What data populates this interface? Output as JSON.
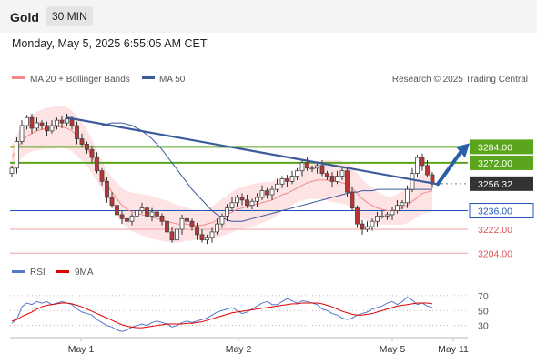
{
  "header": {
    "title": "Gold",
    "timeframe": "30 MIN"
  },
  "datetime": "Monday, May 5, 2025 6:55:05 AM CET",
  "legend": {
    "ma20": "MA 20 + Bollinger Bands",
    "ma50": "MA 50",
    "credit": "Research © 2025 Trading Central"
  },
  "rsi_legend": {
    "rsi": "RSI",
    "ma9": "9MA"
  },
  "colors": {
    "accent_green": "#5aa51b",
    "support_blue": "#2255bb",
    "trend": "#3a5a9a",
    "resistance_red": "#e37b7b",
    "last_price_bg": "#333333"
  },
  "icons": {
    "arrow": "up-right-arrow-icon"
  },
  "chart_data": {
    "type": "candlestick",
    "x_ticks": [
      "May 1",
      "May 2",
      "May 5",
      "May 11"
    ],
    "price_ylim": [
      3196,
      3326
    ],
    "levels": [
      {
        "value": 3284.0,
        "label": "3284.00",
        "kind": "resistance-green"
      },
      {
        "value": 3272.0,
        "label": "3272.00",
        "kind": "resistance-green"
      },
      {
        "value": 3256.32,
        "label": "3256.32",
        "kind": "last-price"
      },
      {
        "value": 3236.0,
        "label": "3236.00",
        "kind": "support-blue"
      },
      {
        "value": 3222.0,
        "label": "3222.00",
        "kind": "support-red"
      },
      {
        "value": 3204.0,
        "label": "3204.00",
        "kind": "support-red"
      }
    ],
    "close": [
      3268,
      3288,
      3300,
      3306,
      3298,
      3302,
      3300,
      3296,
      3300,
      3304,
      3302,
      3305,
      3300,
      3290,
      3286,
      3282,
      3276,
      3266,
      3258,
      3246,
      3240,
      3233,
      3230,
      3228,
      3232,
      3236,
      3238,
      3232,
      3235,
      3232,
      3228,
      3220,
      3214,
      3222,
      3230,
      3228,
      3224,
      3218,
      3214,
      3216,
      3220,
      3226,
      3232,
      3238,
      3242,
      3246,
      3244,
      3240,
      3243,
      3246,
      3251,
      3248,
      3252,
      3256,
      3260,
      3258,
      3262,
      3266,
      3272,
      3268,
      3268,
      3270,
      3264,
      3262,
      3258,
      3262,
      3266,
      3250,
      3238,
      3226,
      3222,
      3224,
      3228,
      3232,
      3232,
      3233,
      3236,
      3240,
      3242,
      3252,
      3264,
      3276,
      3270,
      3263,
      3256
    ],
    "ma20": [
      3276,
      3282,
      3288,
      3292,
      3294,
      3296,
      3297,
      3298,
      3298,
      3299,
      3299,
      3298,
      3296,
      3292,
      3288,
      3283,
      3277,
      3270,
      3263,
      3256,
      3250,
      3245,
      3240,
      3237,
      3235,
      3234,
      3233,
      3232,
      3231,
      3230,
      3229,
      3228,
      3227,
      3226,
      3226,
      3226,
      3225,
      3225,
      3225,
      3226,
      3227,
      3229,
      3231,
      3233,
      3235,
      3237,
      3238,
      3239,
      3240,
      3241,
      3242,
      3243,
      3244,
      3246,
      3248,
      3249,
      3251,
      3253,
      3255,
      3257,
      3258,
      3259,
      3259,
      3259,
      3258,
      3258,
      3257,
      3256,
      3253,
      3249,
      3245,
      3242,
      3240,
      3238,
      3237,
      3236,
      3236,
      3237,
      3238,
      3240,
      3243,
      3246,
      3249,
      3250,
      3251
    ],
    "ma50": [
      3300,
      3301,
      3302,
      3302,
      3302,
      3301,
      3300,
      3298,
      3296,
      3293,
      3290,
      3286,
      3282,
      3277,
      3272,
      3267,
      3262,
      3257,
      3252,
      3248,
      3244,
      3240,
      3236,
      3233,
      3231,
      3229,
      3228,
      3228,
      3228,
      3229,
      3230,
      3231,
      3232,
      3233,
      3234,
      3235,
      3236,
      3237,
      3238,
      3239,
      3240,
      3241,
      3242,
      3243,
      3244,
      3245,
      3246,
      3247,
      3248,
      3249,
      3250,
      3250,
      3251,
      3251,
      3251,
      3252,
      3252,
      3252,
      3252,
      3252,
      3252,
      3252,
      3252,
      3252,
      3252,
      3252,
      3252
    ],
    "ma50_start_index": 18,
    "trendline": {
      "from": {
        "index": 11,
        "price": 3306
      },
      "to": {
        "index": 85,
        "price": 3256
      }
    },
    "projection": {
      "from_price": 3256,
      "to_price": 3284
    },
    "rsi_ylim": [
      15,
      82
    ],
    "rsi_ticks": [
      70,
      50,
      30
    ],
    "rsi": [
      33,
      38,
      55,
      60,
      58,
      62,
      60,
      62,
      58,
      60,
      62,
      60,
      58,
      52,
      48,
      46,
      44,
      38,
      34,
      30,
      28,
      24,
      22,
      24,
      28,
      30,
      32,
      30,
      34,
      36,
      34,
      32,
      28,
      30,
      34,
      36,
      34,
      36,
      38,
      40,
      44,
      48,
      50,
      52,
      54,
      50,
      46,
      48,
      52,
      56,
      60,
      62,
      58,
      58,
      62,
      66,
      63,
      60,
      63,
      62,
      60,
      58,
      52,
      50,
      46,
      44,
      40,
      38,
      40,
      44,
      46,
      48,
      52,
      54,
      56,
      60,
      62,
      58,
      62,
      68,
      64,
      58,
      60,
      56,
      54
    ],
    "rsi_ma9": [
      36,
      38,
      42,
      45,
      48,
      52,
      55,
      57,
      58,
      59,
      60,
      60,
      59,
      57,
      55,
      52,
      49,
      46,
      43,
      40,
      37,
      34,
      31,
      29,
      28,
      27,
      27,
      28,
      29,
      30,
      31,
      32,
      32,
      32,
      32,
      33,
      33,
      34,
      35,
      37,
      39,
      41,
      43,
      45,
      47,
      48,
      49,
      50,
      51,
      52,
      53,
      54,
      55,
      56,
      57,
      58,
      59,
      59,
      60,
      60,
      60,
      60,
      59,
      57,
      55,
      52,
      49,
      47,
      45,
      44,
      44,
      45,
      46,
      48,
      50,
      52,
      54,
      56,
      57,
      58,
      59,
      60,
      60,
      60,
      59
    ]
  }
}
